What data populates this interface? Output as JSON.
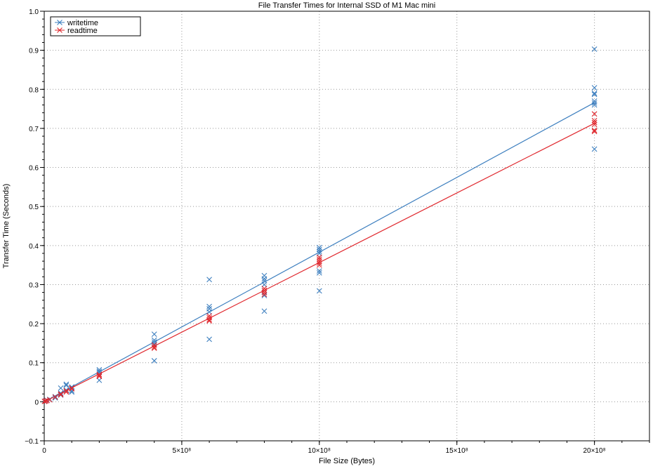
{
  "chart_data": {
    "type": "scatter",
    "title": "File Transfer Times for Internal SSD of M1 Mac mini",
    "xlabel": "File Size (Bytes)",
    "ylabel": "Transfer Time (Seconds)",
    "xlim": [
      0,
      2200000000
    ],
    "ylim": [
      -0.1,
      1.0
    ],
    "grid": true,
    "legend_placement": "top-left",
    "x_ticks": [
      {
        "value": 0,
        "label": "0"
      },
      {
        "value": 500000000,
        "label": "5×10⁸"
      },
      {
        "value": 1000000000,
        "label": "10×10⁸"
      },
      {
        "value": 1500000000,
        "label": "15×10⁸"
      },
      {
        "value": 2000000000,
        "label": "20×10⁸"
      }
    ],
    "y_ticks": [
      {
        "value": -0.1,
        "label": "−0.1"
      },
      {
        "value": 0,
        "label": "0"
      },
      {
        "value": 0.1,
        "label": "0.1"
      },
      {
        "value": 0.2,
        "label": "0.2"
      },
      {
        "value": 0.3,
        "label": "0.3"
      },
      {
        "value": 0.4,
        "label": "0.4"
      },
      {
        "value": 0.5,
        "label": "0.5"
      },
      {
        "value": 0.6,
        "label": "0.6"
      },
      {
        "value": 0.7,
        "label": "0.7"
      },
      {
        "value": 0.8,
        "label": "0.8"
      },
      {
        "value": 0.9,
        "label": "0.9"
      },
      {
        "value": 1.0,
        "label": "1.0"
      }
    ],
    "series": [
      {
        "name": "writetime",
        "color": "#3d7fbf",
        "marker": "x",
        "fit_line": {
          "x": [
            0,
            2000000000
          ],
          "y": [
            0,
            0.766
          ]
        },
        "points": [
          [
            1000000,
            0.001
          ],
          [
            5000000,
            0.002
          ],
          [
            10000000,
            0.004
          ],
          [
            20000000,
            0.006
          ],
          [
            40000000,
            0.013
          ],
          [
            40000000,
            0.01
          ],
          [
            60000000,
            0.035
          ],
          [
            60000000,
            0.022
          ],
          [
            60000000,
            0.017
          ],
          [
            80000000,
            0.045
          ],
          [
            80000000,
            0.042
          ],
          [
            80000000,
            0.03
          ],
          [
            100000000,
            0.038
          ],
          [
            100000000,
            0.035
          ],
          [
            100000000,
            0.028
          ],
          [
            100000000,
            0.025
          ],
          [
            200000000,
            0.082
          ],
          [
            200000000,
            0.078
          ],
          [
            200000000,
            0.075
          ],
          [
            200000000,
            0.055
          ],
          [
            400000000,
            0.173
          ],
          [
            400000000,
            0.158
          ],
          [
            400000000,
            0.153
          ],
          [
            400000000,
            0.148
          ],
          [
            400000000,
            0.105
          ],
          [
            600000000,
            0.313
          ],
          [
            600000000,
            0.244
          ],
          [
            600000000,
            0.238
          ],
          [
            600000000,
            0.23
          ],
          [
            600000000,
            0.16
          ],
          [
            800000000,
            0.323
          ],
          [
            800000000,
            0.315
          ],
          [
            800000000,
            0.31
          ],
          [
            800000000,
            0.3
          ],
          [
            800000000,
            0.28
          ],
          [
            800000000,
            0.272
          ],
          [
            800000000,
            0.232
          ],
          [
            1000000000,
            0.395
          ],
          [
            1000000000,
            0.39
          ],
          [
            1000000000,
            0.385
          ],
          [
            1000000000,
            0.38
          ],
          [
            1000000000,
            0.335
          ],
          [
            1000000000,
            0.33
          ],
          [
            1000000000,
            0.284
          ],
          [
            2000000000,
            0.903
          ],
          [
            2000000000,
            0.804
          ],
          [
            2000000000,
            0.79
          ],
          [
            2000000000,
            0.787
          ],
          [
            2000000000,
            0.77
          ],
          [
            2000000000,
            0.765
          ],
          [
            2000000000,
            0.76
          ],
          [
            2000000000,
            0.647
          ]
        ]
      },
      {
        "name": "readtime",
        "color": "#e0282e",
        "marker": "x",
        "fit_line": {
          "x": [
            0,
            2000000000
          ],
          "y": [
            0,
            0.713
          ]
        },
        "points": [
          [
            1000000,
            0.001
          ],
          [
            5000000,
            0.002
          ],
          [
            10000000,
            0.003
          ],
          [
            20000000,
            0.005
          ],
          [
            40000000,
            0.012
          ],
          [
            60000000,
            0.02
          ],
          [
            60000000,
            0.018
          ],
          [
            80000000,
            0.028
          ],
          [
            80000000,
            0.025
          ],
          [
            100000000,
            0.035
          ],
          [
            100000000,
            0.033
          ],
          [
            200000000,
            0.07
          ],
          [
            200000000,
            0.067
          ],
          [
            200000000,
            0.065
          ],
          [
            400000000,
            0.145
          ],
          [
            400000000,
            0.14
          ],
          [
            400000000,
            0.137
          ],
          [
            600000000,
            0.22
          ],
          [
            600000000,
            0.215
          ],
          [
            600000000,
            0.21
          ],
          [
            600000000,
            0.207
          ],
          [
            800000000,
            0.29
          ],
          [
            800000000,
            0.285
          ],
          [
            800000000,
            0.28
          ],
          [
            800000000,
            0.275
          ],
          [
            1000000000,
            0.37
          ],
          [
            1000000000,
            0.365
          ],
          [
            1000000000,
            0.36
          ],
          [
            1000000000,
            0.355
          ],
          [
            1000000000,
            0.35
          ],
          [
            2000000000,
            0.737
          ],
          [
            2000000000,
            0.72
          ],
          [
            2000000000,
            0.715
          ],
          [
            2000000000,
            0.71
          ],
          [
            2000000000,
            0.695
          ],
          [
            2000000000,
            0.692
          ]
        ]
      }
    ]
  }
}
